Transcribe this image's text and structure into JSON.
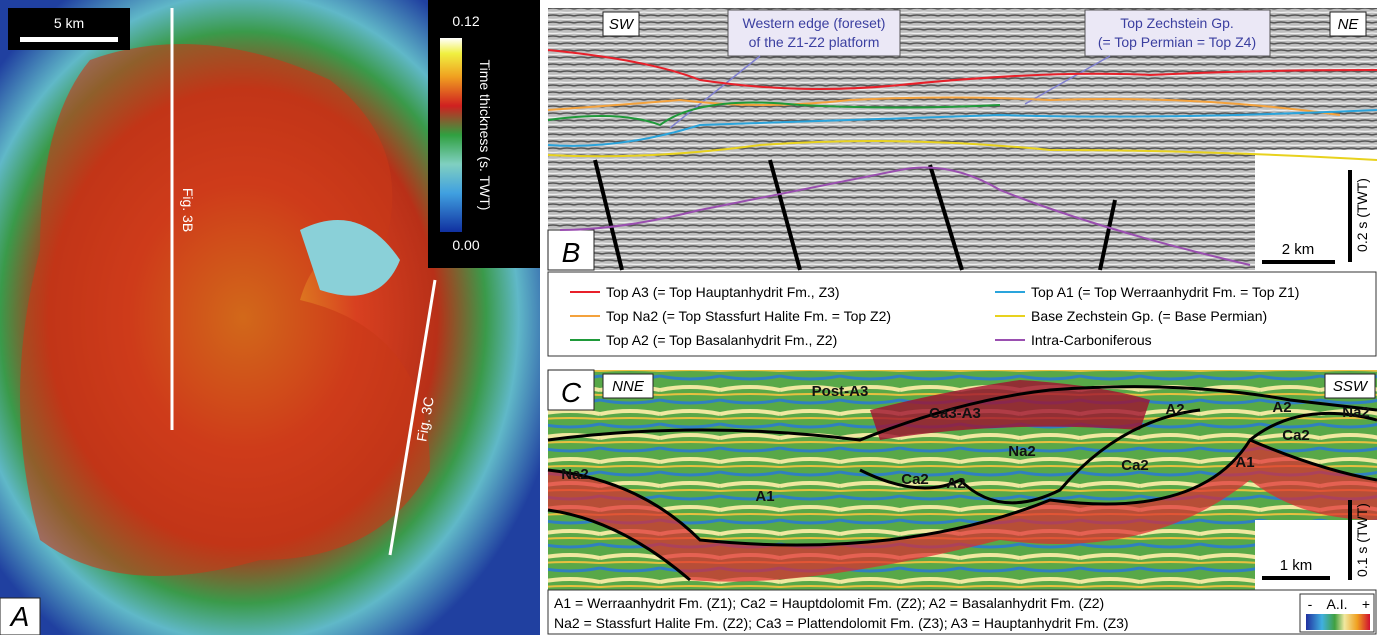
{
  "panel_a": {
    "letter": "A",
    "scale_bar": "5 km",
    "colorbar_max": "0.12",
    "colorbar_min": "0.00",
    "colorbar_label": "Time thickness (s. TWT)",
    "line_b": "Fig. 3B",
    "line_c": "Fig. 3C"
  },
  "panel_b": {
    "letter": "B",
    "left_end": "SW",
    "right_end": "NE",
    "callout_1": [
      "Western edge (foreset)",
      "of the Z1-Z2 platform"
    ],
    "callout_2": [
      "Top Zechstein Gp.",
      "(= Top Permian = Top Z4)"
    ],
    "scale_h": "2 km",
    "scale_v": "0.2 s (TWT)",
    "legend": [
      {
        "name": "Top A3 (= Top Hauptanhydrit Fm., Z3)",
        "color": "#e8202a"
      },
      {
        "name": "Top Na2 (= Top Stassfurt Halite Fm. = Top Z2)",
        "color": "#f4a23c"
      },
      {
        "name": "Top A2 (= Top Basalanhydrit Fm., Z2)",
        "color": "#1f9a3a"
      },
      {
        "name": "Top A1 (= Top Werraanhydrit Fm. = Top Z1)",
        "color": "#2aa4dc"
      },
      {
        "name": "Base Zechstein Gp. (= Base Permian)",
        "color": "#e8d21e"
      },
      {
        "name": "Intra-Carboniferous",
        "color": "#9a4fb0"
      }
    ]
  },
  "panel_c": {
    "letter": "C",
    "left_end": "NNE",
    "right_end": "SSW",
    "scale_h": "1 km",
    "scale_v": "0.1 s (TWT)",
    "labels": [
      "Post-A3",
      "Ca3-A3",
      "A2",
      "A2",
      "Na2",
      "Na2",
      "Na2",
      "Ca2",
      "Ca2",
      "Ca2",
      "A2",
      "A1",
      "A1"
    ],
    "caption": [
      "A1 = Werraanhydrit Fm. (Z1);  Ca2 = Hauptdolomit Fm. (Z2);  A2 = Basalanhydrit Fm. (Z2)",
      "Na2 = Stassfurt Halite Fm. (Z2);  Ca3 = Plattendolomit Fm. (Z3);  A3 = Hauptanhydrit Fm. (Z3)"
    ],
    "ai_minus": "-",
    "ai_label": "A.I.",
    "ai_plus": "+"
  }
}
